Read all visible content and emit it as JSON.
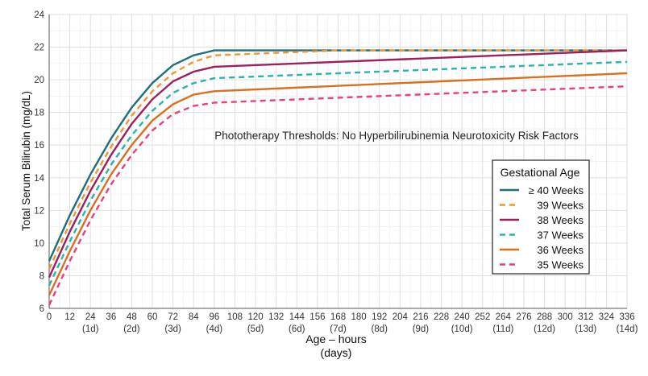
{
  "chart_data": {
    "type": "line",
    "annotation": "Phototherapy Thresholds:  No Hyperbilirubinemia Neurotoxicity Risk Factors",
    "xlabel": "Age – hours",
    "xlabel2": "(days)",
    "ylabel": "Total Serum Bilirubin (mg/dL)",
    "xlim": [
      0,
      336
    ],
    "ylim": [
      6,
      24
    ],
    "grid": true,
    "x_ticks": [
      0,
      12,
      24,
      36,
      48,
      60,
      72,
      84,
      96,
      108,
      120,
      132,
      144,
      156,
      168,
      180,
      192,
      204,
      216,
      228,
      240,
      252,
      264,
      276,
      288,
      300,
      312,
      324,
      336
    ],
    "x_day_labels": [
      {
        "x": 24,
        "label": "(1d)"
      },
      {
        "x": 48,
        "label": "(2d)"
      },
      {
        "x": 72,
        "label": "(3d)"
      },
      {
        "x": 96,
        "label": "(4d)"
      },
      {
        "x": 120,
        "label": "(5d)"
      },
      {
        "x": 144,
        "label": "(6d)"
      },
      {
        "x": 168,
        "label": "(7d)"
      },
      {
        "x": 192,
        "label": "(8d)"
      },
      {
        "x": 216,
        "label": "(9d)"
      },
      {
        "x": 240,
        "label": "(10d)"
      },
      {
        "x": 264,
        "label": "(11d)"
      },
      {
        "x": 288,
        "label": "(12d)"
      },
      {
        "x": 312,
        "label": "(13d)"
      },
      {
        "x": 336,
        "label": "(14d)"
      }
    ],
    "y_ticks": [
      6,
      8,
      10,
      12,
      14,
      16,
      18,
      20,
      22,
      24
    ],
    "legend": {
      "title": "Gestational Age",
      "placement": "right"
    },
    "series": [
      {
        "name": "≥ 40 Weeks",
        "color": "#1f6f78",
        "dashed": false,
        "points": [
          [
            0,
            8.9
          ],
          [
            12,
            11.7
          ],
          [
            24,
            14.2
          ],
          [
            36,
            16.4
          ],
          [
            48,
            18.3
          ],
          [
            60,
            19.8
          ],
          [
            72,
            20.9
          ],
          [
            84,
            21.5
          ],
          [
            96,
            21.8
          ],
          [
            336,
            21.8
          ]
        ]
      },
      {
        "name": "39 Weeks",
        "color": "#f0962f",
        "dashed": true,
        "points": [
          [
            0,
            8.4
          ],
          [
            12,
            11.2
          ],
          [
            24,
            13.7
          ],
          [
            36,
            15.9
          ],
          [
            48,
            17.8
          ],
          [
            60,
            19.3
          ],
          [
            72,
            20.4
          ],
          [
            84,
            21.1
          ],
          [
            96,
            21.5
          ],
          [
            168,
            21.8
          ],
          [
            336,
            21.8
          ]
        ]
      },
      {
        "name": "38 Weeks",
        "color": "#9e1f5e",
        "dashed": false,
        "points": [
          [
            0,
            7.9
          ],
          [
            12,
            10.7
          ],
          [
            24,
            13.2
          ],
          [
            36,
            15.4
          ],
          [
            48,
            17.3
          ],
          [
            60,
            18.8
          ],
          [
            72,
            19.9
          ],
          [
            84,
            20.5
          ],
          [
            96,
            20.8
          ],
          [
            336,
            21.8
          ]
        ]
      },
      {
        "name": "37 Weeks",
        "color": "#2ab3ad",
        "dashed": true,
        "points": [
          [
            0,
            7.4
          ],
          [
            12,
            10.1
          ],
          [
            24,
            12.6
          ],
          [
            36,
            14.8
          ],
          [
            48,
            16.6
          ],
          [
            60,
            18.1
          ],
          [
            72,
            19.2
          ],
          [
            84,
            19.8
          ],
          [
            96,
            20.1
          ],
          [
            336,
            21.1
          ]
        ]
      },
      {
        "name": "36 Weeks",
        "color": "#d9701f",
        "dashed": false,
        "points": [
          [
            0,
            6.8
          ],
          [
            12,
            9.5
          ],
          [
            24,
            12.0
          ],
          [
            36,
            14.2
          ],
          [
            48,
            16.0
          ],
          [
            60,
            17.5
          ],
          [
            72,
            18.5
          ],
          [
            84,
            19.1
          ],
          [
            96,
            19.3
          ],
          [
            336,
            20.4
          ]
        ]
      },
      {
        "name": "35 Weeks",
        "color": "#ea3f7e",
        "dashed": true,
        "points": [
          [
            0,
            6.2
          ],
          [
            12,
            8.9
          ],
          [
            24,
            11.4
          ],
          [
            36,
            13.6
          ],
          [
            48,
            15.4
          ],
          [
            60,
            16.9
          ],
          [
            72,
            17.9
          ],
          [
            84,
            18.4
          ],
          [
            96,
            18.6
          ],
          [
            336,
            19.6
          ]
        ]
      }
    ]
  }
}
